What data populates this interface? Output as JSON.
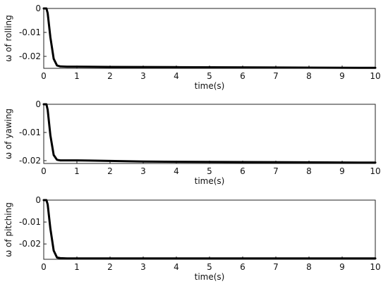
{
  "chart_data": [
    {
      "type": "line",
      "xlabel": "time(s)",
      "ylabel": "ω of rolling",
      "xlim": [
        0,
        10
      ],
      "ylim": [
        -0.025,
        0
      ],
      "xticks": [
        "0",
        "1",
        "2",
        "3",
        "4",
        "5",
        "6",
        "7",
        "8",
        "9",
        "10"
      ],
      "yticks": [
        {
          "v": 0,
          "label": "0"
        },
        {
          "v": -0.01,
          "label": "-0.01"
        },
        {
          "v": -0.02,
          "label": "-0.02"
        }
      ],
      "grid": false,
      "series": [
        {
          "x": [
            0,
            0.08,
            0.12,
            0.2,
            0.3,
            0.4,
            0.5,
            0.7,
            1,
            2,
            4,
            6,
            8,
            10
          ],
          "y": [
            0,
            0,
            -0.002,
            -0.012,
            -0.021,
            -0.0238,
            -0.0242,
            -0.0243,
            -0.0243,
            -0.0244,
            -0.0245,
            -0.0246,
            -0.0247,
            -0.0248
          ]
        }
      ]
    },
    {
      "type": "line",
      "xlabel": "time(s)",
      "ylabel": "ω of yawing",
      "xlim": [
        0,
        10
      ],
      "ylim": [
        -0.021,
        0
      ],
      "xticks": [
        "0",
        "1",
        "2",
        "3",
        "4",
        "5",
        "6",
        "7",
        "8",
        "9",
        "10"
      ],
      "yticks": [
        {
          "v": 0,
          "label": "0"
        },
        {
          "v": -0.01,
          "label": "-0.01"
        },
        {
          "v": -0.02,
          "label": "-0.02"
        }
      ],
      "grid": false,
      "series": [
        {
          "x": [
            0,
            0.08,
            0.12,
            0.2,
            0.3,
            0.4,
            0.5,
            0.7,
            1,
            2,
            3,
            4,
            6,
            8,
            10
          ],
          "y": [
            0,
            0,
            -0.002,
            -0.011,
            -0.018,
            -0.0197,
            -0.0199,
            -0.0199,
            -0.0199,
            -0.0201,
            -0.0203,
            -0.0204,
            -0.0205,
            -0.0206,
            -0.0207
          ]
        }
      ]
    },
    {
      "type": "line",
      "xlabel": "time(s)",
      "ylabel": "ω of pitching",
      "xlim": [
        0,
        10
      ],
      "ylim": [
        -0.027,
        0
      ],
      "xticks": [
        "0",
        "1",
        "2",
        "3",
        "4",
        "5",
        "6",
        "7",
        "8",
        "9",
        "10"
      ],
      "yticks": [
        {
          "v": 0,
          "label": "0"
        },
        {
          "v": -0.01,
          "label": "-0.01"
        },
        {
          "v": -0.02,
          "label": "-0.02"
        }
      ],
      "grid": false,
      "series": [
        {
          "x": [
            0,
            0.08,
            0.12,
            0.2,
            0.3,
            0.4,
            0.5,
            0.7,
            1,
            2,
            4,
            6,
            8,
            10
          ],
          "y": [
            0,
            0,
            -0.002,
            -0.013,
            -0.023,
            -0.0262,
            -0.0265,
            -0.0266,
            -0.0266,
            -0.0266,
            -0.0266,
            -0.0266,
            -0.0266,
            -0.0266
          ]
        }
      ]
    }
  ]
}
